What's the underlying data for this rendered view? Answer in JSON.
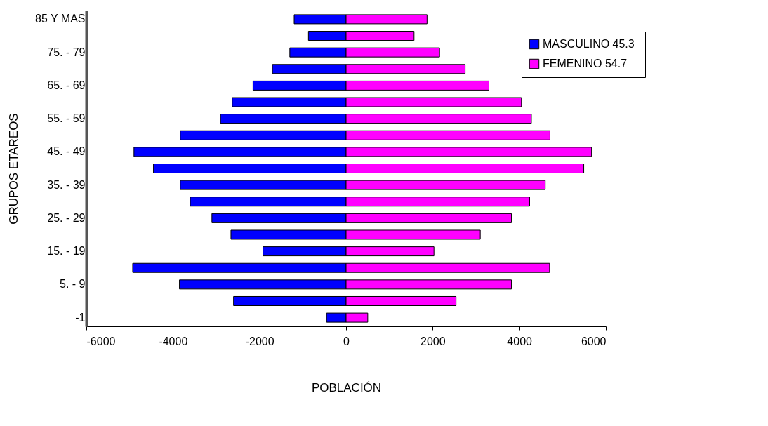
{
  "chart_data": {
    "type": "bar",
    "orientation": "horizontal",
    "xlabel": "POBLACIÓN",
    "ylabel": "GRUPOS ETAREOS",
    "categories": [
      "85 Y MAS",
      null,
      "75.  - 79",
      null,
      "65.  - 69",
      null,
      "55.  - 59",
      null,
      "45.  - 49",
      null,
      "35.  - 39",
      null,
      "25.  - 29",
      null,
      "15.  - 19",
      null,
      "5.  - 9",
      null,
      "-1"
    ],
    "series": [
      {
        "name": "MASCULINO  45.3",
        "color": "#0000ff",
        "values": [
          -1200,
          -870,
          -1300,
          -1700,
          -2150,
          -2630,
          -2900,
          -3830,
          -4900,
          -4450,
          -3830,
          -3600,
          -3100,
          -2660,
          -1920,
          -4930,
          -3850,
          -2600,
          -450
        ]
      },
      {
        "name": "FEMENINO  54.7",
        "color": "#ff00ff",
        "values": [
          1870,
          1570,
          2160,
          2750,
          3300,
          4050,
          4280,
          4710,
          5670,
          5490,
          4600,
          4240,
          3820,
          3100,
          2030,
          4700,
          3820,
          2540,
          500
        ]
      }
    ],
    "xlim": [
      -6000,
      6000
    ],
    "xticks": [
      -6000,
      -4000,
      -2000,
      0,
      2000,
      4000,
      6000
    ],
    "grid": false,
    "legend": "top right",
    "stacked": true
  }
}
